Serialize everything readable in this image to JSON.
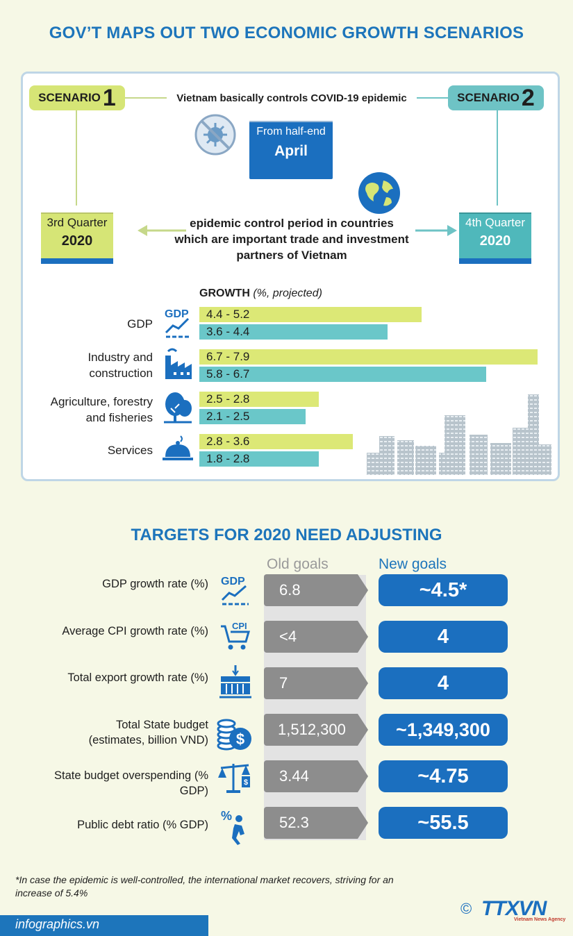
{
  "title": "GOV’T MAPS OUT TWO ECONOMIC GROWTH SCENARIOS",
  "scenario1": {
    "label": "SCENARIO",
    "number": "1",
    "quarter": "3rd Quarter",
    "year": "2020"
  },
  "scenario2": {
    "label": "SCENARIO",
    "number": "2",
    "quarter": "4th Quarter",
    "year": "2020"
  },
  "top_text": "Vietnam basically controls COVID-19 epidemic",
  "calendar_center": {
    "line1": "From half-end",
    "line2": "April"
  },
  "epidemic_text": [
    "epidemic control period in countries",
    "which are important trade and investment",
    "partners of Vietnam"
  ],
  "growth": {
    "title": "GROWTH",
    "subtitle": "(%, projected)",
    "rows": [
      {
        "label1": "GDP",
        "label2": "",
        "icon": "gdp-chart-icon",
        "a": "4.4 - 5.2",
        "b": "3.6 - 4.4"
      },
      {
        "label1": "Industry and",
        "label2": "construction",
        "icon": "factory-icon",
        "a": "6.7 - 7.9",
        "b": "5.8 - 6.7"
      },
      {
        "label1": "Agriculture, forestry",
        "label2": "and fisheries",
        "icon": "tree-icon",
        "a": "2.5 - 2.8",
        "b": "2.1 - 2.5"
      },
      {
        "label1": "Services",
        "label2": "",
        "icon": "cloche-icon",
        "a": "2.8 - 3.6",
        "b": "1.8 - 2.8"
      }
    ]
  },
  "targets": {
    "title": "TARGETS FOR 2020 NEED ADJUSTING",
    "old_header": "Old goals",
    "new_header": "New goals",
    "rows": [
      {
        "label1": "GDP growth rate (%)",
        "label2": "",
        "icon": "gdp-chart-icon",
        "old": "6.8",
        "new": "~4.5*"
      },
      {
        "label1": "Average CPI growth rate (%)",
        "label2": "",
        "icon": "cpi-cart-icon",
        "old": "<4",
        "new": "4"
      },
      {
        "label1": "Total export growth rate (%)",
        "label2": "",
        "icon": "container-crane-icon",
        "old": "7",
        "new": "4"
      },
      {
        "label1": "Total State budget",
        "label2": "(estimates, billion VND)",
        "icon": "coins-dollar-icon",
        "old": "1,512,300",
        "new": "~1,349,300"
      },
      {
        "label1": "State budget overspending (%",
        "label2": "GDP)",
        "icon": "scale-icon",
        "old": "3.44",
        "new": "~4.75"
      },
      {
        "label1": "Public debt ratio (% GDP)",
        "label2": "",
        "icon": "debt-person-icon",
        "old": "52.3",
        "new": "~55.5"
      }
    ]
  },
  "footnote": [
    "*In case the epidemic is well-controlled, the international market recovers, striving for an",
    "increase of 5.4%"
  ],
  "footer": {
    "site": "infographics.vn",
    "copyright": "©",
    "logo": "TTXVN",
    "logo_sub": "Vietnam News Agency"
  }
}
